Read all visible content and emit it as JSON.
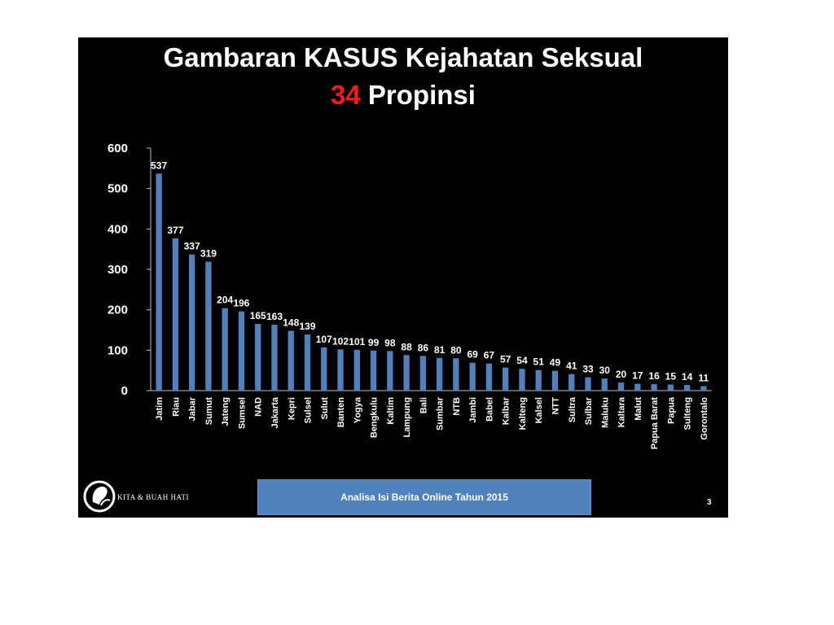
{
  "slide": {
    "title_line1": "Gambaran KASUS Kejahatan Seksual",
    "title_line2_number": "34",
    "title_line2_text": "Propinsi",
    "footer": "Analisa Isi Berita Online Tahun  2015",
    "page_number": "3",
    "logo_text": "KITA & BUAH HATI",
    "logo_icon": "silhouette-logo-icon",
    "colors": {
      "background": "#000000",
      "bar": "#4f81bd",
      "highlight": "#ff1a1a",
      "text": "#ffffff"
    }
  },
  "chart_data": {
    "type": "bar",
    "categories": [
      "Jatim",
      "Riau",
      "Jabar",
      "Sumut",
      "Jateng",
      "Sumsel",
      "NAD",
      "Jakarta",
      "Kepri",
      "Sulsel",
      "Sulut",
      "Banten",
      "Yogya",
      "Bengkulu",
      "Kaltim",
      "Lampung",
      "Bali",
      "Sumbar",
      "NTB",
      "Jambi",
      "Babel",
      "Kalbar",
      "Kalteng",
      "Kalsel",
      "NTT",
      "Sultra",
      "Sulbar",
      "Maluku",
      "Kaltara",
      "Malut",
      "Papua Barat",
      "Papua",
      "Sulteng",
      "Gorontalo"
    ],
    "values": [
      537,
      377,
      337,
      319,
      204,
      196,
      165,
      163,
      148,
      139,
      107,
      102,
      101,
      99,
      98,
      88,
      86,
      81,
      80,
      69,
      67,
      57,
      54,
      51,
      49,
      41,
      33,
      30,
      20,
      17,
      16,
      15,
      14,
      11
    ],
    "yticks": [
      "600",
      "500",
      "400",
      "300",
      "200",
      "100",
      "0"
    ],
    "ylim": [
      0,
      600
    ],
    "grid": false,
    "legend": "none",
    "data_labels": true
  }
}
